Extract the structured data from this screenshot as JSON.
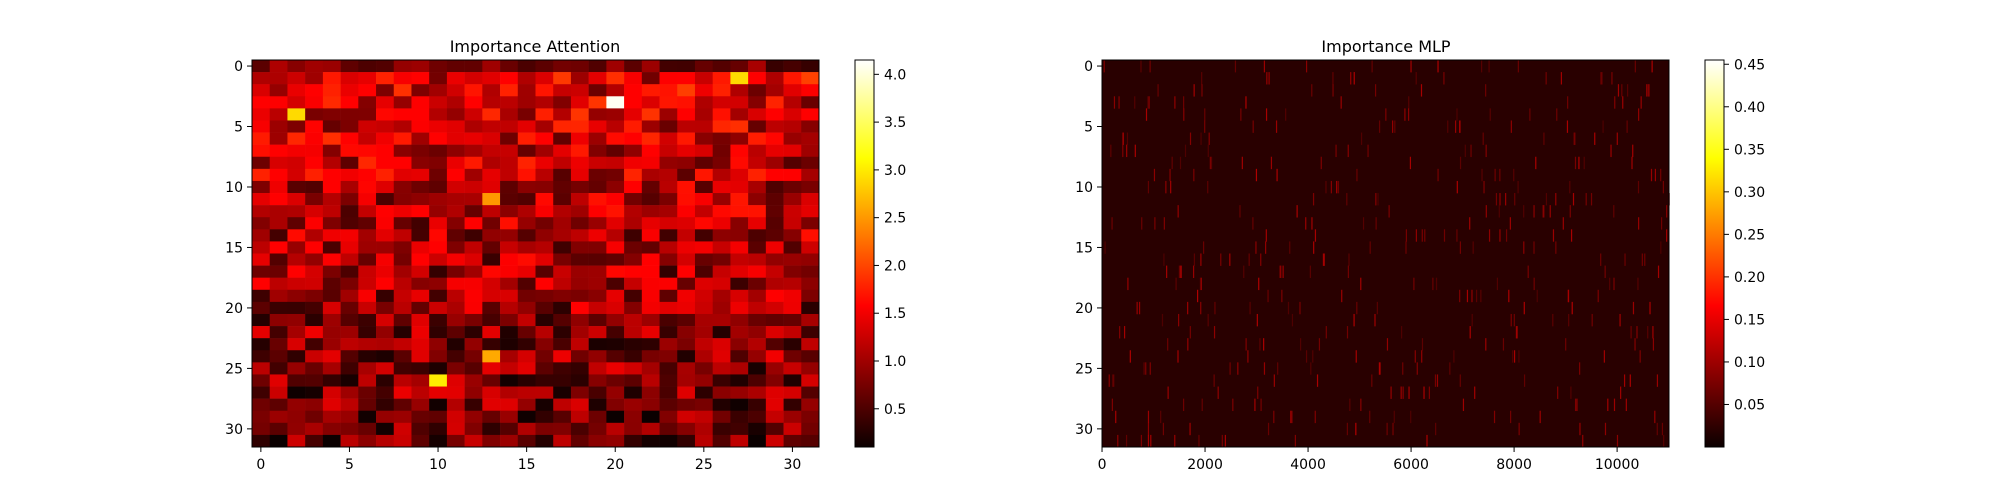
{
  "chart_data": [
    {
      "type": "heatmap",
      "title": "Importance Attention",
      "colormap": "hot",
      "rows": 32,
      "cols": 32,
      "x_ticks": [
        "0",
        "5",
        "10",
        "15",
        "20",
        "25",
        "30"
      ],
      "y_ticks": [
        "0",
        "5",
        "10",
        "15",
        "20",
        "25",
        "30"
      ],
      "x_tick_values": [
        0,
        5,
        10,
        15,
        20,
        25,
        30
      ],
      "y_tick_values": [
        0,
        5,
        10,
        15,
        20,
        25,
        30
      ],
      "colorbar": {
        "ticks": [
          "0.5",
          "1.0",
          "1.5",
          "2.0",
          "2.5",
          "3.0",
          "3.5",
          "4.0"
        ],
        "tick_values": [
          0.5,
          1.0,
          1.5,
          2.0,
          2.5,
          3.0,
          3.5,
          4.0
        ],
        "range": [
          0.1,
          4.15
        ]
      },
      "notable_values": [
        {
          "row": 3,
          "col": 20,
          "value": 4.1
        },
        {
          "row": 26,
          "col": 10,
          "value": 3.0
        },
        {
          "row": 4,
          "col": 2,
          "value": 2.9
        },
        {
          "row": 1,
          "col": 27,
          "value": 2.9
        },
        {
          "row": 24,
          "col": 13,
          "value": 2.6
        },
        {
          "row": 11,
          "col": 13,
          "value": 2.5
        }
      ]
    },
    {
      "type": "heatmap",
      "title": "Importance MLP",
      "colormap": "hot",
      "rows": 32,
      "cols": 11008,
      "x_ticks": [
        "0",
        "2000",
        "4000",
        "6000",
        "8000",
        "10000"
      ],
      "y_ticks": [
        "0",
        "5",
        "10",
        "15",
        "20",
        "25",
        "30"
      ],
      "x_tick_values": [
        0,
        2000,
        4000,
        6000,
        8000,
        10000
      ],
      "y_tick_values": [
        0,
        5,
        10,
        15,
        20,
        25,
        30
      ],
      "colorbar": {
        "ticks": [
          "0.05",
          "0.10",
          "0.15",
          "0.20",
          "0.25",
          "0.30",
          "0.35",
          "0.40",
          "0.45"
        ],
        "tick_values": [
          0.05,
          0.1,
          0.15,
          0.2,
          0.25,
          0.3,
          0.35,
          0.4,
          0.45
        ],
        "range": [
          0.0,
          0.455
        ]
      },
      "typical_value": 0.02
    }
  ]
}
